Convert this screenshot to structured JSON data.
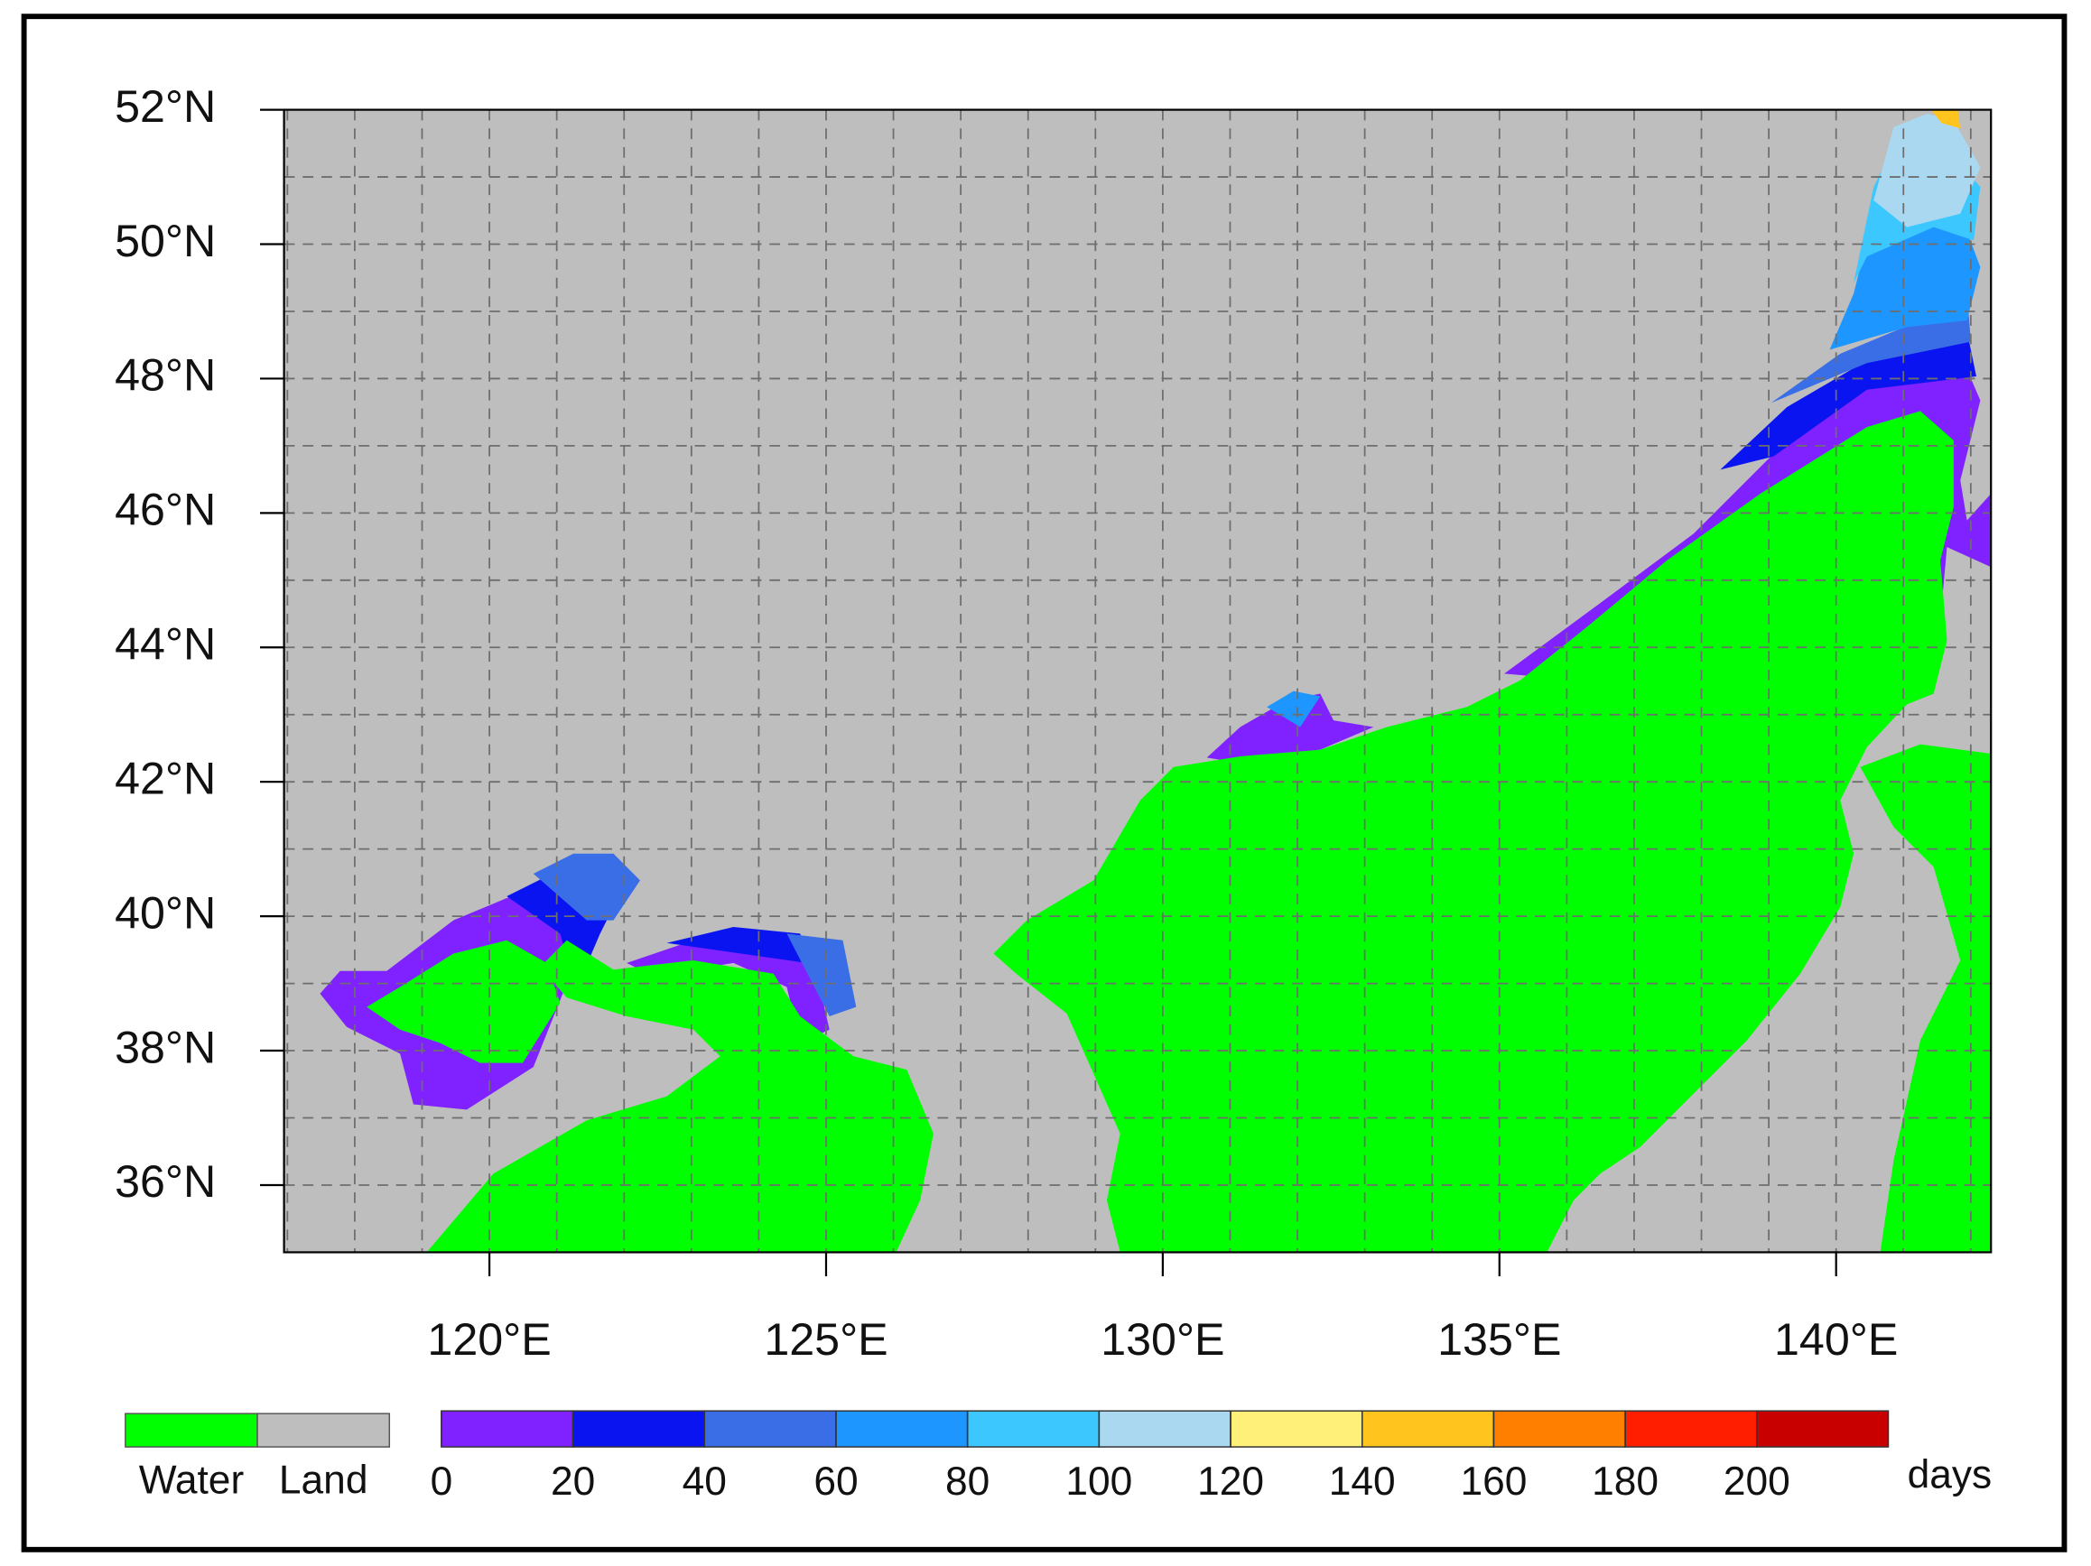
{
  "map": {
    "xlim": [
      116.95,
      142.3
    ],
    "ylim": [
      35,
      52
    ],
    "xticks": [
      {
        "value": 120,
        "label": "120°E"
      },
      {
        "value": 125,
        "label": "125°E"
      },
      {
        "value": 130,
        "label": "130°E"
      },
      {
        "value": 135,
        "label": "135°E"
      },
      {
        "value": 140,
        "label": "140°E"
      }
    ],
    "yticks": [
      {
        "value": 36,
        "label": "36°N"
      },
      {
        "value": 38,
        "label": "38°N"
      },
      {
        "value": 40,
        "label": "40°N"
      },
      {
        "value": 42,
        "label": "42°N"
      },
      {
        "value": 44,
        "label": "44°N"
      },
      {
        "value": 46,
        "label": "46°N"
      },
      {
        "value": 48,
        "label": "48°N"
      },
      {
        "value": 50,
        "label": "50°N"
      },
      {
        "value": 52,
        "label": "52°N"
      }
    ],
    "grid": true
  },
  "legend": {
    "items": [
      {
        "label": "Water",
        "color": "#00ff00"
      },
      {
        "label": "Land",
        "color": "#bebebe"
      }
    ]
  },
  "colorbar": {
    "levels": [
      0,
      20,
      40,
      60,
      80,
      100,
      120,
      140,
      160,
      180,
      200
    ],
    "colors": [
      "#7f22ff",
      "#0a14f0",
      "#3a6ee6",
      "#1e96ff",
      "#3cc8ff",
      "#aad8f0",
      "#fff07a",
      "#ffc41e",
      "#ff7f00",
      "#ff1e00",
      "#c80000"
    ],
    "unit": "days"
  }
}
